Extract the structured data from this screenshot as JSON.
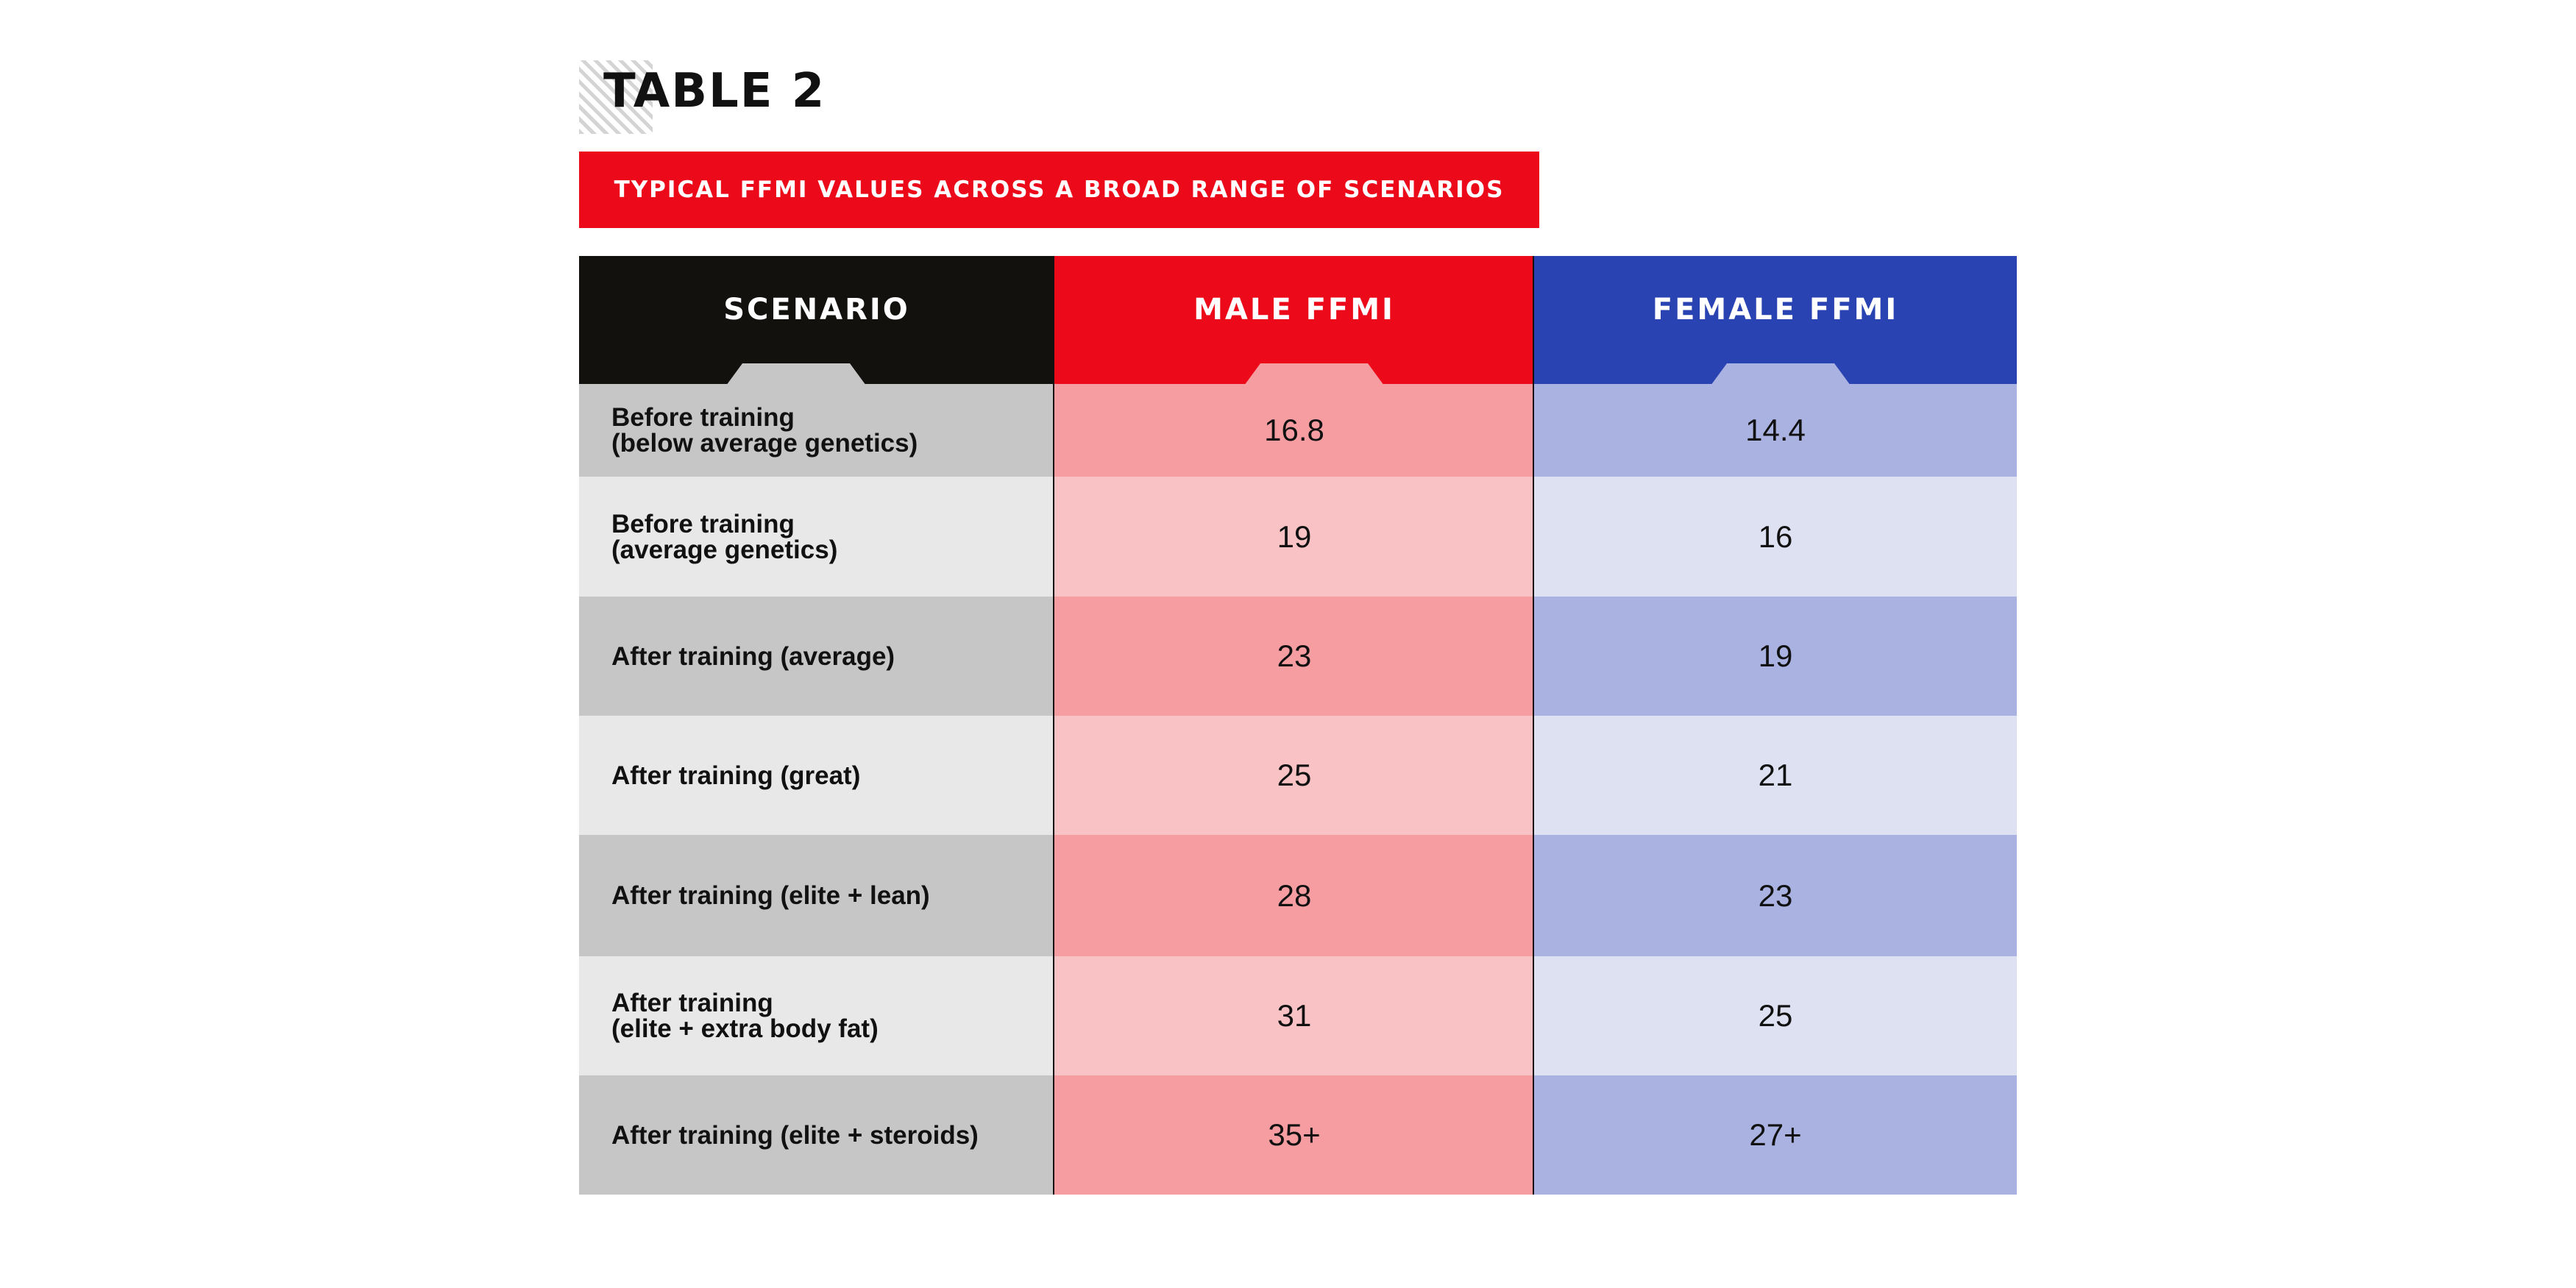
{
  "title": "TABLE 2",
  "subtitle": "TYPICAL FFMI VALUES ACROSS A BROAD RANGE  OF SCENARIOS",
  "colors": {
    "scenario_header": "#12110d",
    "male_header": "#ec0a1a",
    "female_header": "#2a43b2",
    "scenario_dark": "#c6c6c6",
    "scenario_light": "#e8e8e8",
    "male_dark": "#f69da2",
    "male_light": "#f9c3c6",
    "female_dark": "#a9b2e0",
    "female_light": "#dee1f2",
    "header_tab_scenario": "#c6c6c6",
    "header_tab_male": "#f69da2",
    "header_tab_female": "#a9b2e0"
  },
  "chart_data": {
    "type": "table",
    "title": "TABLE 2",
    "subtitle": "TYPICAL FFMI VALUES ACROSS A BROAD RANGE  OF SCENARIOS",
    "columns": [
      "SCENARIO",
      "MALE FFMI",
      "FEMALE FFMI"
    ],
    "rows": [
      {
        "scenario": "Before training\n(below average genetics)",
        "male": "16.8",
        "female": "14.4"
      },
      {
        "scenario": "Before training\n(average genetics)",
        "male": "19",
        "female": "16"
      },
      {
        "scenario": "After training (average)",
        "male": "23",
        "female": "19"
      },
      {
        "scenario": "After training (great)",
        "male": "25",
        "female": "21"
      },
      {
        "scenario": "After training (elite + lean)",
        "male": "28",
        "female": "23"
      },
      {
        "scenario": "After training\n(elite + extra body fat)",
        "male": "31",
        "female": "25"
      },
      {
        "scenario": "After training (elite + steroids)",
        "male": "35+",
        "female": "27+"
      }
    ]
  }
}
